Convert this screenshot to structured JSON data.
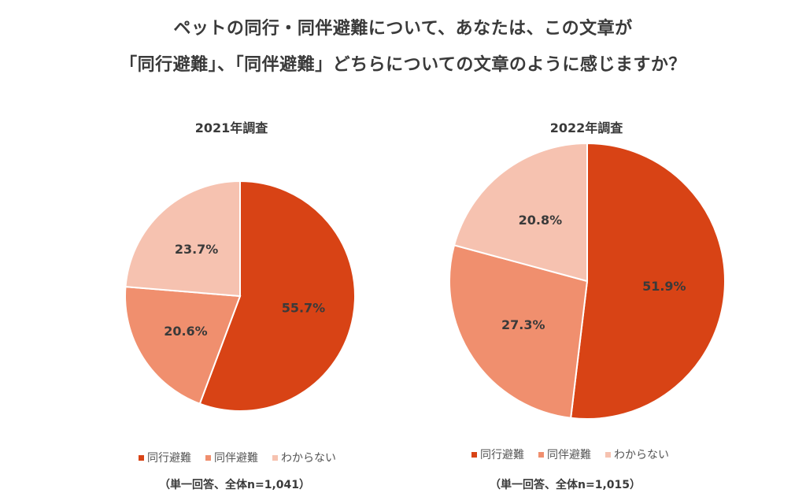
{
  "title_line1": "ペットの同行・同伴避難について、あなたは、この文章が",
  "title_line2": "「同行避難」、「同伴避難」どちらについての文章のように感じますか？",
  "legend_labels": [
    "同行避難",
    "同伴避難",
    "わからない"
  ],
  "colors": [
    "#d84315",
    "#f08f6e",
    "#f6c2b0"
  ],
  "chart_data": [
    {
      "type": "pie",
      "title": "2021年調査",
      "categories": [
        "同行避難",
        "同伴避難",
        "わからない"
      ],
      "values": [
        55.7,
        20.6,
        23.7
      ],
      "labels": [
        "55.7%",
        "20.6%",
        "23.7%"
      ],
      "note": "（単一回答、全体n=1,041）"
    },
    {
      "type": "pie",
      "title": "2022年調査",
      "categories": [
        "同行避難",
        "同伴避難",
        "わからない"
      ],
      "values": [
        51.9,
        27.3,
        20.8
      ],
      "labels": [
        "51.9%",
        "27.3%",
        "20.8%"
      ],
      "note": "（単一回答、全体n=1,015）"
    }
  ]
}
